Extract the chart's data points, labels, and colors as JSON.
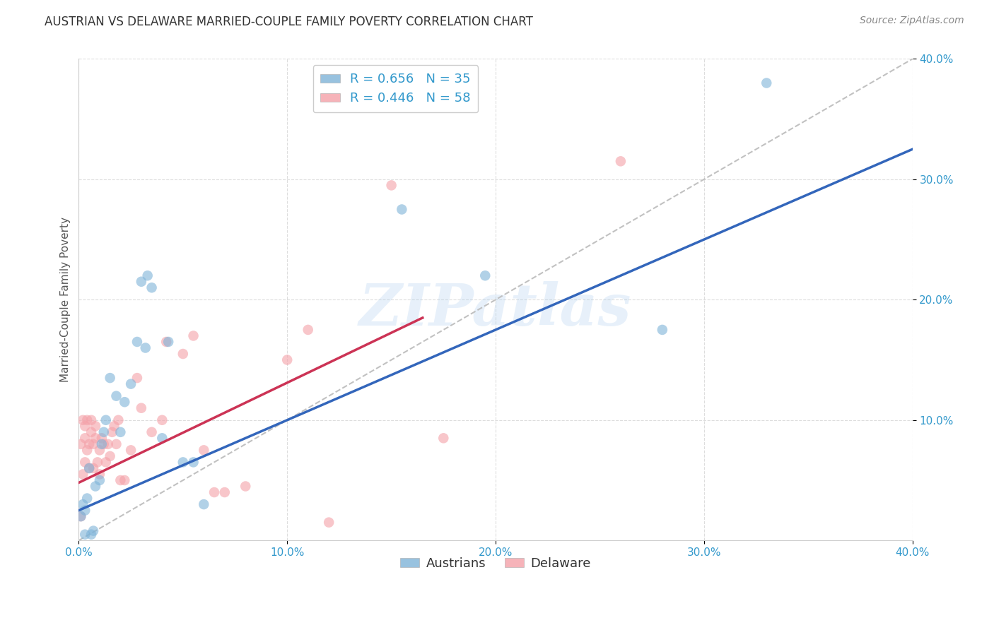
{
  "title": "AUSTRIAN VS DELAWARE MARRIED-COUPLE FAMILY POVERTY CORRELATION CHART",
  "source": "Source: ZipAtlas.com",
  "ylabel": "Married-Couple Family Poverty",
  "xlim": [
    0.0,
    0.4
  ],
  "ylim": [
    0.0,
    0.4
  ],
  "xticks": [
    0.0,
    0.1,
    0.2,
    0.3,
    0.4
  ],
  "yticks": [
    0.1,
    0.2,
    0.3,
    0.4
  ],
  "xtick_labels": [
    "0.0%",
    "10.0%",
    "20.0%",
    "30.0%",
    "40.0%"
  ],
  "ytick_labels": [
    "10.0%",
    "20.0%",
    "30.0%",
    "40.0%"
  ],
  "austrians_color": "#7EB3D8",
  "delaware_color": "#F4A0A8",
  "blue_line_color": "#3366BB",
  "pink_line_color": "#CC3355",
  "diagonal_color": "#BBBBBB",
  "grid_color": "#DDDDDD",
  "watermark": "ZIPatlas",
  "legend_R_austrians": "R = 0.656",
  "legend_N_austrians": "N = 35",
  "legend_R_delaware": "R = 0.446",
  "legend_N_delaware": "N = 58",
  "blue_line_x": [
    0.0,
    0.4
  ],
  "blue_line_y": [
    0.025,
    0.325
  ],
  "pink_line_x": [
    0.0,
    0.165
  ],
  "pink_line_y": [
    0.048,
    0.185
  ],
  "austrians_x": [
    0.001,
    0.002,
    0.003,
    0.003,
    0.004,
    0.005,
    0.006,
    0.007,
    0.008,
    0.01,
    0.011,
    0.012,
    0.013,
    0.015,
    0.018,
    0.02,
    0.022,
    0.025,
    0.028,
    0.03,
    0.032,
    0.033,
    0.035,
    0.04,
    0.043,
    0.05,
    0.055,
    0.06,
    0.155,
    0.195,
    0.28,
    0.33
  ],
  "austrians_y": [
    0.02,
    0.03,
    0.005,
    0.025,
    0.035,
    0.06,
    0.005,
    0.008,
    0.045,
    0.05,
    0.08,
    0.09,
    0.1,
    0.135,
    0.12,
    0.09,
    0.115,
    0.13,
    0.165,
    0.215,
    0.16,
    0.22,
    0.21,
    0.085,
    0.165,
    0.065,
    0.065,
    0.03,
    0.275,
    0.22,
    0.175,
    0.38
  ],
  "delaware_x": [
    0.001,
    0.001,
    0.002,
    0.002,
    0.003,
    0.003,
    0.003,
    0.004,
    0.004,
    0.005,
    0.005,
    0.006,
    0.006,
    0.007,
    0.007,
    0.008,
    0.008,
    0.009,
    0.01,
    0.01,
    0.011,
    0.012,
    0.013,
    0.014,
    0.015,
    0.016,
    0.017,
    0.018,
    0.019,
    0.02,
    0.022,
    0.025,
    0.028,
    0.03,
    0.035,
    0.04,
    0.042,
    0.05,
    0.055,
    0.06,
    0.065,
    0.07,
    0.08,
    0.1,
    0.11,
    0.12,
    0.15,
    0.175,
    0.26
  ],
  "delaware_y": [
    0.02,
    0.08,
    0.055,
    0.1,
    0.065,
    0.085,
    0.095,
    0.075,
    0.1,
    0.06,
    0.08,
    0.09,
    0.1,
    0.06,
    0.08,
    0.085,
    0.095,
    0.065,
    0.055,
    0.075,
    0.085,
    0.08,
    0.065,
    0.08,
    0.07,
    0.09,
    0.095,
    0.08,
    0.1,
    0.05,
    0.05,
    0.075,
    0.135,
    0.11,
    0.09,
    0.1,
    0.165,
    0.155,
    0.17,
    0.075,
    0.04,
    0.04,
    0.045,
    0.15,
    0.175,
    0.015,
    0.295,
    0.085,
    0.315
  ]
}
